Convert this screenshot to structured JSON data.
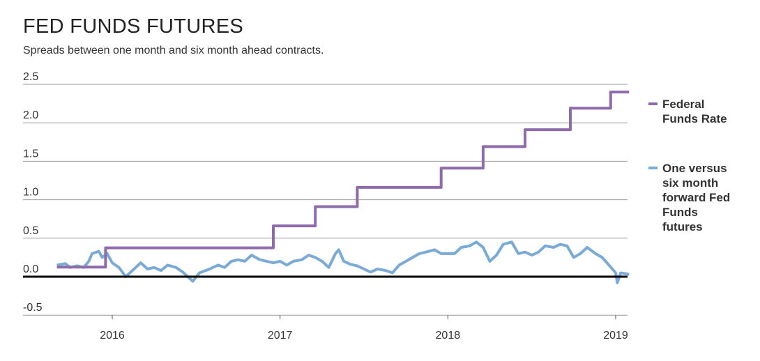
{
  "chart_data": {
    "type": "line",
    "title": "FED FUNDS FUTURES",
    "subtitle": "Spreads between one month and six month ahead contracts.",
    "xlabel": "",
    "ylabel": "",
    "x_ticks": [
      "2016",
      "2017",
      "2018",
      "2019"
    ],
    "xlim": [
      2015.67,
      2019.08
    ],
    "y_ticks": [
      "2.5",
      "2.0",
      "1.5",
      "1.0",
      "0.5",
      "0.0",
      "-0.5"
    ],
    "ylim": [
      -0.5,
      2.5
    ],
    "grid": true,
    "legend_position": "right",
    "colors": {
      "fed_funds": "#8e6bab",
      "spread": "#7aaad6",
      "zero_line": "#000000",
      "grid": "#999999"
    },
    "series": [
      {
        "name": "Federal Funds Rate",
        "style": "step",
        "points": [
          [
            2015.67,
            0.125
          ],
          [
            2015.96,
            0.125
          ],
          [
            2015.96,
            0.375
          ],
          [
            2016.96,
            0.375
          ],
          [
            2016.96,
            0.66
          ],
          [
            2017.21,
            0.66
          ],
          [
            2017.21,
            0.91
          ],
          [
            2017.46,
            0.91
          ],
          [
            2017.46,
            1.16
          ],
          [
            2017.96,
            1.16
          ],
          [
            2017.96,
            1.41
          ],
          [
            2018.21,
            1.41
          ],
          [
            2018.21,
            1.69
          ],
          [
            2018.46,
            1.69
          ],
          [
            2018.46,
            1.91
          ],
          [
            2018.73,
            1.91
          ],
          [
            2018.73,
            2.19
          ],
          [
            2018.97,
            2.19
          ],
          [
            2018.97,
            2.4
          ],
          [
            2019.08,
            2.4
          ]
        ]
      },
      {
        "name": "One versus six month forward Fed Funds futures",
        "style": "line",
        "points": [
          [
            2015.67,
            0.15
          ],
          [
            2015.72,
            0.17
          ],
          [
            2015.75,
            0.12
          ],
          [
            2015.79,
            0.14
          ],
          [
            2015.83,
            0.12
          ],
          [
            2015.86,
            0.2
          ],
          [
            2015.88,
            0.3
          ],
          [
            2015.92,
            0.33
          ],
          [
            2015.94,
            0.25
          ],
          [
            2015.97,
            0.3
          ],
          [
            2016.0,
            0.18
          ],
          [
            2016.04,
            0.12
          ],
          [
            2016.08,
            0.0
          ],
          [
            2016.12,
            0.08
          ],
          [
            2016.17,
            0.18
          ],
          [
            2016.21,
            0.1
          ],
          [
            2016.25,
            0.12
          ],
          [
            2016.29,
            0.08
          ],
          [
            2016.33,
            0.15
          ],
          [
            2016.38,
            0.12
          ],
          [
            2016.42,
            0.06
          ],
          [
            2016.46,
            -0.02
          ],
          [
            2016.48,
            -0.06
          ],
          [
            2016.52,
            0.05
          ],
          [
            2016.58,
            0.1
          ],
          [
            2016.63,
            0.15
          ],
          [
            2016.67,
            0.12
          ],
          [
            2016.71,
            0.2
          ],
          [
            2016.75,
            0.22
          ],
          [
            2016.79,
            0.2
          ],
          [
            2016.83,
            0.28
          ],
          [
            2016.88,
            0.22
          ],
          [
            2016.92,
            0.2
          ],
          [
            2016.96,
            0.18
          ],
          [
            2017.0,
            0.2
          ],
          [
            2017.04,
            0.15
          ],
          [
            2017.08,
            0.2
          ],
          [
            2017.13,
            0.22
          ],
          [
            2017.17,
            0.28
          ],
          [
            2017.21,
            0.25
          ],
          [
            2017.25,
            0.2
          ],
          [
            2017.29,
            0.12
          ],
          [
            2017.33,
            0.3
          ],
          [
            2017.35,
            0.35
          ],
          [
            2017.38,
            0.2
          ],
          [
            2017.42,
            0.16
          ],
          [
            2017.46,
            0.14
          ],
          [
            2017.5,
            0.1
          ],
          [
            2017.54,
            0.06
          ],
          [
            2017.58,
            0.1
          ],
          [
            2017.63,
            0.08
          ],
          [
            2017.67,
            0.05
          ],
          [
            2017.71,
            0.15
          ],
          [
            2017.75,
            0.2
          ],
          [
            2017.79,
            0.25
          ],
          [
            2017.83,
            0.3
          ],
          [
            2017.87,
            0.32
          ],
          [
            2017.92,
            0.35
          ],
          [
            2017.96,
            0.3
          ],
          [
            2018.0,
            0.3
          ],
          [
            2018.04,
            0.3
          ],
          [
            2018.08,
            0.38
          ],
          [
            2018.13,
            0.4
          ],
          [
            2018.17,
            0.45
          ],
          [
            2018.21,
            0.38
          ],
          [
            2018.25,
            0.2
          ],
          [
            2018.29,
            0.28
          ],
          [
            2018.33,
            0.42
          ],
          [
            2018.38,
            0.45
          ],
          [
            2018.42,
            0.3
          ],
          [
            2018.46,
            0.32
          ],
          [
            2018.5,
            0.28
          ],
          [
            2018.54,
            0.32
          ],
          [
            2018.58,
            0.4
          ],
          [
            2018.63,
            0.38
          ],
          [
            2018.67,
            0.42
          ],
          [
            2018.71,
            0.4
          ],
          [
            2018.75,
            0.25
          ],
          [
            2018.79,
            0.3
          ],
          [
            2018.83,
            0.38
          ],
          [
            2018.88,
            0.3
          ],
          [
            2018.92,
            0.25
          ],
          [
            2018.96,
            0.15
          ],
          [
            2019.0,
            0.05
          ],
          [
            2019.01,
            -0.08
          ],
          [
            2019.03,
            0.05
          ],
          [
            2019.08,
            0.03
          ]
        ]
      }
    ]
  }
}
